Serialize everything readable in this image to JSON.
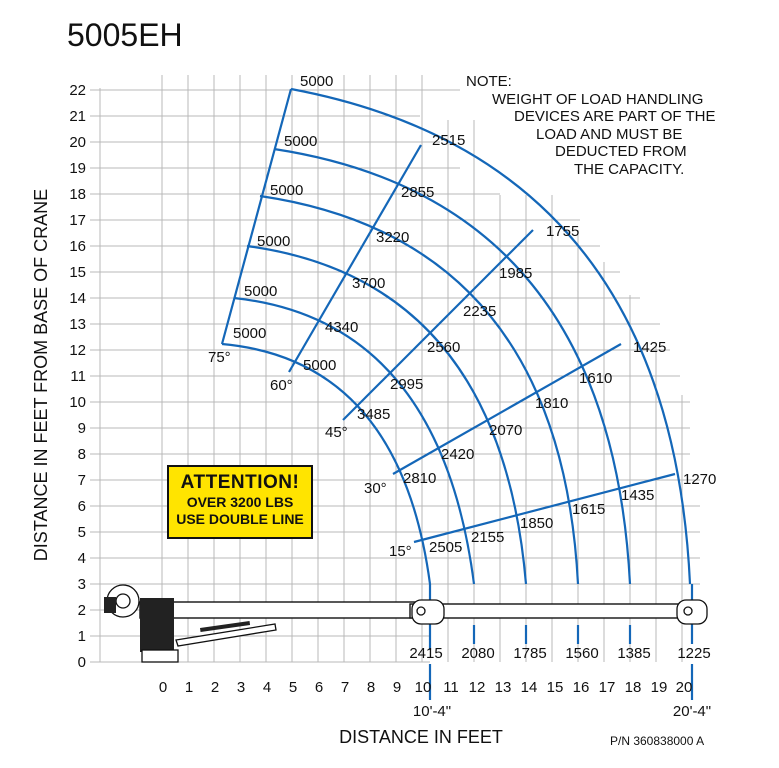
{
  "title": "5005EH",
  "note": {
    "lines": [
      "NOTE:",
      "WEIGHT OF LOAD HANDLING",
      "DEVICES ARE PART OF THE",
      "LOAD AND MUST BE",
      "DEDUCTED FROM",
      "THE CAPACITY."
    ]
  },
  "attention": {
    "heading": "ATTENTION!",
    "line1": "OVER 3200 LBS",
    "line2": "USE DOUBLE LINE",
    "color": "#ffe400"
  },
  "axis": {
    "xlabel": "DISTANCE IN FEET",
    "ylabel": "DISTANCE IN FEET FROM BASE OF CRANE",
    "xticks": [
      "0",
      "1",
      "2",
      "3",
      "4",
      "5",
      "6",
      "7",
      "8",
      "9",
      "10",
      "11",
      "12",
      "13",
      "14",
      "15",
      "16",
      "17",
      "18",
      "19",
      "20"
    ],
    "yticks": [
      "0",
      "1",
      "2",
      "3",
      "4",
      "5",
      "6",
      "7",
      "8",
      "9",
      "10",
      "11",
      "12",
      "13",
      "14",
      "15",
      "16",
      "17",
      "18",
      "19",
      "20",
      "21",
      "22"
    ]
  },
  "angle_labels": [
    "75°",
    "60°",
    "45°",
    "30°",
    "15°"
  ],
  "capacities_by_angle": [
    {
      "angle": "75°",
      "values": [
        "5000",
        "5000",
        "5000",
        "5000",
        "5000",
        "5000"
      ]
    },
    {
      "angle": "60°",
      "values": [
        "5000",
        "4340",
        "3700",
        "3220",
        "2855",
        "2515"
      ]
    },
    {
      "angle": "45°",
      "values": [
        "3485",
        "2995",
        "2560",
        "2235",
        "1985",
        "1755"
      ]
    },
    {
      "angle": "30°",
      "values": [
        "2810",
        "2420",
        "2070",
        "1810",
        "1610",
        "1425"
      ]
    },
    {
      "angle": "15°",
      "values": [
        "2505",
        "2155",
        "1850",
        "1615",
        "1435",
        "1270"
      ]
    }
  ],
  "horizontal_capacities": [
    "2415",
    "2080",
    "1785",
    "1560",
    "1385",
    "1225"
  ],
  "boom_lengths": [
    "10'-4\"",
    "20'-4\""
  ],
  "part_number": "P/N 360838000 A",
  "colors": {
    "chart_line": "#1467b8",
    "grid": "#b9b9b9"
  }
}
